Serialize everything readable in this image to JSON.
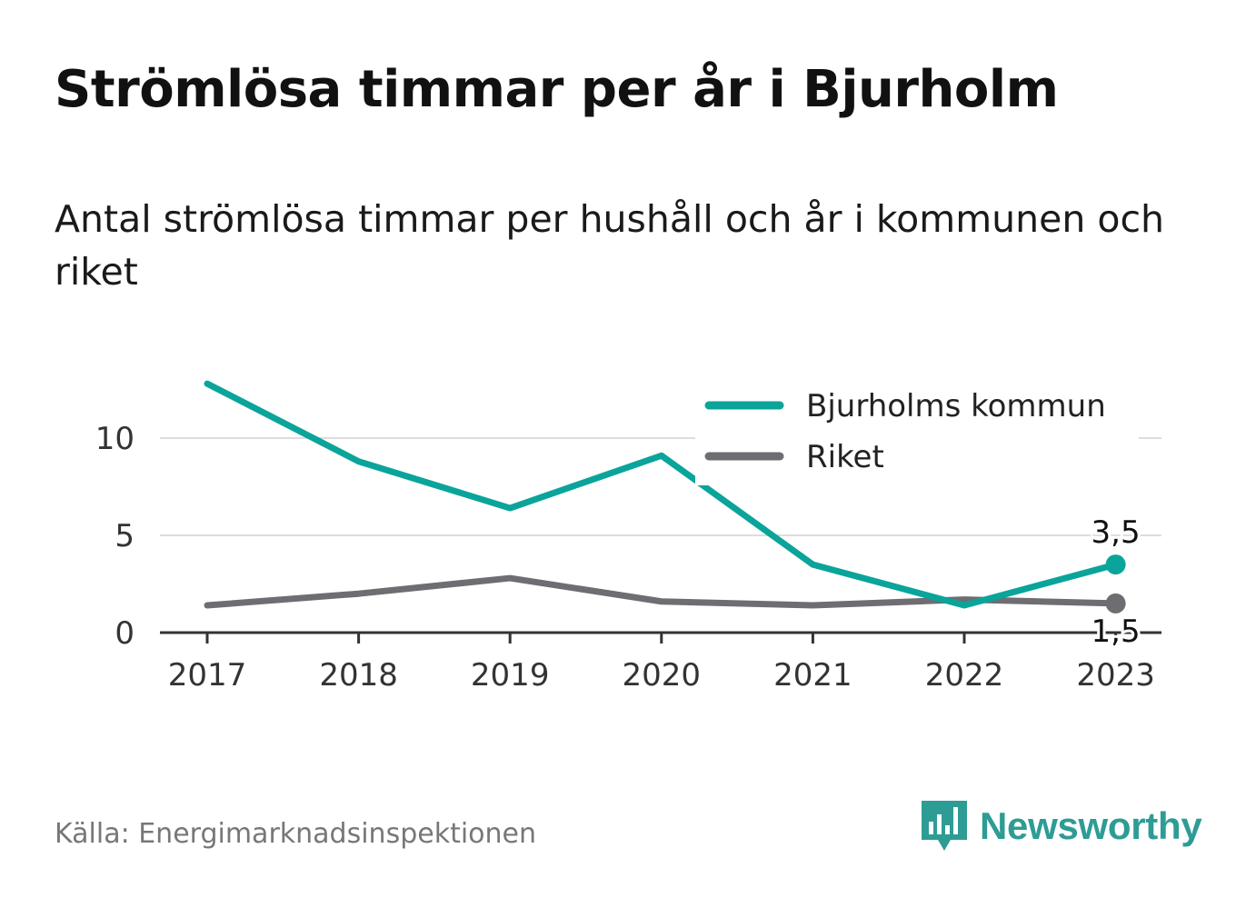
{
  "title": "Strömlösa timmar per år i Bjurholm",
  "subtitle": "Antal strömlösa timmar per hushåll och år i kommunen och riket",
  "source": "Källa: Energimarknadsinspektionen",
  "brand": {
    "name": "Newsworthy",
    "icon": "newsworthy-logo-icon",
    "color": "#2d9c95"
  },
  "chart_data": {
    "type": "line",
    "x": [
      "2017",
      "2018",
      "2019",
      "2020",
      "2021",
      "2022",
      "2023"
    ],
    "ylim": [
      0,
      13
    ],
    "yticks": [
      0,
      5,
      10
    ],
    "grid": true,
    "legend_position": "top-right",
    "series": [
      {
        "name": "Bjurholms kommun",
        "color": "#0aa49a",
        "values": [
          12.8,
          8.8,
          6.4,
          9.1,
          3.5,
          1.4,
          3.5
        ],
        "end_label": "3,5"
      },
      {
        "name": "Riket",
        "color": "#6e6d72",
        "values": [
          1.4,
          2.0,
          2.8,
          1.6,
          1.4,
          1.7,
          1.5
        ],
        "end_label": "1,5"
      }
    ]
  }
}
